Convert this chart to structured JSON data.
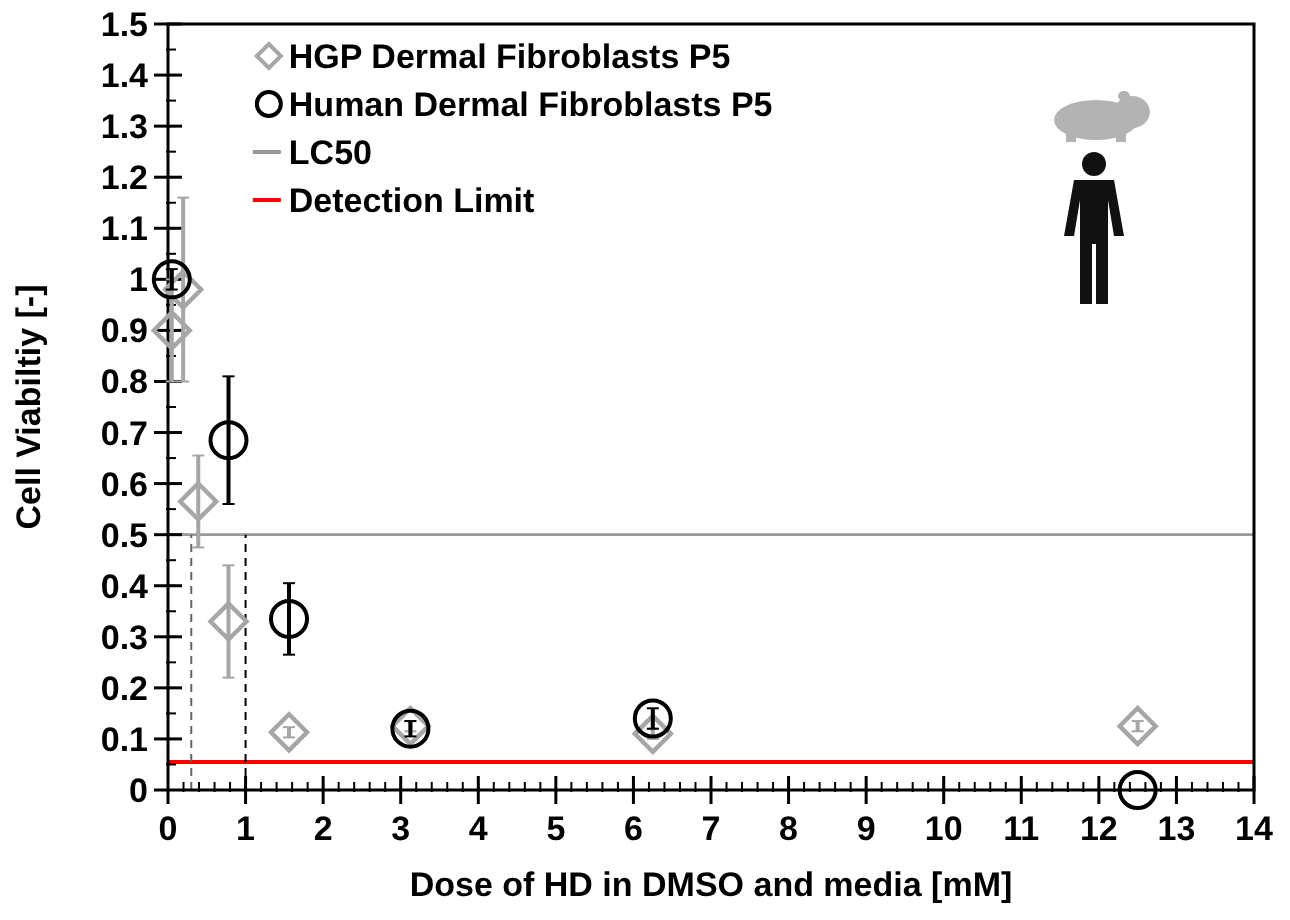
{
  "chart_data": {
    "type": "scatter",
    "xlabel": "Dose of HD in DMSO and media [mM]",
    "ylabel": "Cell Viabiltiy [-]",
    "xlim": [
      0,
      14
    ],
    "xticks": [
      0,
      1,
      2,
      3,
      4,
      5,
      6,
      7,
      8,
      9,
      10,
      11,
      12,
      13,
      14
    ],
    "ylim": [
      0,
      1.5
    ],
    "yticks": [
      0,
      0.1,
      0.2,
      0.3,
      0.4,
      0.5,
      0.6,
      0.7,
      0.8,
      0.9,
      1,
      1.1,
      1.2,
      1.3,
      1.4,
      1.5
    ],
    "legend": "top",
    "grid": false,
    "series": [
      {
        "name": "HGP Dermal Fibroblasts P5",
        "color": "#a6a6a6",
        "marker": "diamond",
        "x": [
          0.049,
          0.195,
          0.39,
          0.78,
          1.56,
          3.125,
          6.25,
          12.5
        ],
        "values": [
          0.9,
          0.98,
          0.565,
          0.33,
          0.113,
          0.125,
          0.11,
          0.125
        ],
        "errors": [
          0.1,
          0.18,
          0.09,
          0.11,
          0.01,
          0.01,
          0.01,
          0.01
        ]
      },
      {
        "name": "Human Dermal Fibroblasts P5",
        "color": "#000000",
        "marker": "circle",
        "x": [
          0.049,
          0.78,
          1.56,
          3.125,
          6.25,
          12.5
        ],
        "values": [
          1.0,
          0.685,
          0.335,
          0.12,
          0.14,
          0.0
        ],
        "errors": [
          0.02,
          0.125,
          0.07,
          0.015,
          0.02,
          null
        ]
      }
    ],
    "ref_lines": [
      {
        "axis": "y",
        "value": 0.5,
        "label": "LC50",
        "color": "#999999",
        "line_style": "solid"
      },
      {
        "axis": "y",
        "value": 0.055,
        "label": "Detection Limit",
        "color": "#ff0000",
        "line_style": "solid"
      },
      {
        "axis": "x",
        "value": 0.3,
        "color": "#666666",
        "line_style": "dashed"
      },
      {
        "axis": "x",
        "value": 1.0,
        "color": "#000000",
        "line_style": "dashed"
      }
    ]
  }
}
